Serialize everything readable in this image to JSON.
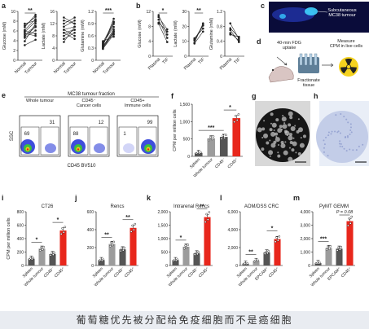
{
  "caption": "葡萄糖优先被分配给免疫细胞而不是癌细胞",
  "colors": {
    "red": "#e8271c",
    "dark": "#555555",
    "grey": "#9c9c9c",
    "flow_blue": "#1d2fd6",
    "ink": "#222222"
  },
  "panel_letters": {
    "a": "a",
    "b": "b",
    "c": "c",
    "d": "d",
    "e": "e",
    "f": "f",
    "g": "g",
    "h": "h",
    "i": "i",
    "j": "j",
    "k": "k",
    "l": "l",
    "m": "m"
  },
  "panel_a": {
    "xticks": [
      "Normal",
      "Tumour"
    ],
    "plots": [
      {
        "ylabel": "Glucose (mM)",
        "yticks": [
          "0",
          "2",
          "4",
          "6",
          "8",
          "10"
        ],
        "ylim": [
          0,
          10
        ],
        "sig": "**",
        "pairs": [
          [
            6.2,
            8.4
          ],
          [
            5.8,
            7.9
          ],
          [
            7.1,
            8.9
          ],
          [
            4.9,
            6.8
          ],
          [
            5.5,
            5.0
          ],
          [
            3.9,
            7.5
          ],
          [
            6.8,
            9.3
          ],
          [
            4.6,
            6.1
          ],
          [
            7.5,
            8.1
          ],
          [
            5.2,
            7.0
          ],
          [
            3.1,
            4.2
          ],
          [
            6.0,
            5.4
          ]
        ]
      },
      {
        "ylabel": "Lactate (mM)",
        "yticks": [
          "0",
          "4",
          "8",
          "12",
          "16"
        ],
        "ylim": [
          0,
          16
        ],
        "sig": "",
        "pairs": [
          [
            9,
            10
          ],
          [
            12,
            14
          ],
          [
            7,
            9
          ],
          [
            10,
            8
          ],
          [
            13,
            12
          ],
          [
            6,
            11
          ],
          [
            8,
            10
          ],
          [
            11,
            13
          ],
          [
            9,
            7
          ],
          [
            14,
            12
          ],
          [
            10,
            11
          ]
        ]
      },
      {
        "ylabel": "Glutamine (mM)",
        "yticks": [
          "0",
          "0.3",
          "0.6",
          "0.9",
          "1.2"
        ],
        "ylim": [
          0,
          1.2
        ],
        "sig": "***",
        "pairs": [
          [
            0.31,
            0.72
          ],
          [
            0.38,
            0.95
          ],
          [
            0.29,
            0.63
          ],
          [
            0.42,
            0.82
          ],
          [
            0.35,
            1.02
          ],
          [
            0.47,
            0.58
          ],
          [
            0.33,
            0.76
          ],
          [
            0.4,
            0.89
          ],
          [
            0.28,
            0.7
          ],
          [
            0.36,
            0.66
          ],
          [
            0.44,
            0.93
          ]
        ]
      }
    ]
  },
  "panel_b": {
    "xticks": [
      "Plasma",
      "TIF"
    ],
    "plots": [
      {
        "ylabel": "Glucose (mM)",
        "yticks": [
          "0",
          "4",
          "8",
          "12"
        ],
        "ylim": [
          0,
          12
        ],
        "sig": "*",
        "pairs": [
          [
            10.5,
            7.2
          ],
          [
            11.0,
            5.8
          ],
          [
            9.8,
            4.9
          ],
          [
            9.0,
            6.6
          ],
          [
            8.7,
            3.8
          ]
        ]
      },
      {
        "ylabel": "Lactate (mM)",
        "yticks": [
          "0",
          "10",
          "20",
          "30"
        ],
        "ylim": [
          0,
          30
        ],
        "sig": "**",
        "pairs": [
          [
            10.5,
            20.5
          ],
          [
            9.0,
            22.0
          ],
          [
            12.0,
            18.5
          ],
          [
            8.5,
            16.5
          ],
          [
            11.0,
            21.0
          ]
        ]
      },
      {
        "ylabel": "Glutamine (mM)",
        "yticks": [
          "0",
          "0.4",
          "0.8",
          "1.2"
        ],
        "ylim": [
          0,
          1.2
        ],
        "sig": "",
        "pairs": [
          [
            0.75,
            0.5
          ],
          [
            0.62,
            0.42
          ],
          [
            0.88,
            0.46
          ],
          [
            0.58,
            0.52
          ],
          [
            0.7,
            0.38
          ]
        ]
      }
    ]
  },
  "panel_c": {
    "label": "Subcutaneous\nMC38 tumour"
  },
  "panel_d": {
    "step1": "40-min FDG\nuptake",
    "step2": "Fractionate\ntissue",
    "step3": "Measure\nCPM in live cells"
  },
  "panel_e": {
    "title": "MC38 tumour fraction",
    "headers": [
      "Whole tumour",
      "CD45⁻\nCancer cells",
      "CD45+\nImmune cells"
    ],
    "gate_values": [
      [
        "69",
        "31"
      ],
      [
        "88",
        "12"
      ],
      [
        "1",
        "99"
      ]
    ],
    "ylabel": "SSC",
    "xlabel": "CD45 BV510"
  },
  "panel_f": {
    "ylabel": "CPM per million cells",
    "chart_data": {
      "type": "bar",
      "categories": [
        "Spleen",
        "Whole tumour",
        "CD45⁻",
        "CD45⁺"
      ],
      "values": [
        100,
        520,
        560,
        1100
      ],
      "yticks": [
        "0",
        "500",
        "1,000",
        "1,500"
      ],
      "ylim": [
        0,
        1500
      ],
      "sig": [
        [
          "***",
          0,
          2
        ],
        [
          "*",
          2,
          3
        ]
      ]
    }
  },
  "panel_i": {
    "title": "CT26",
    "ylabel": "CPM per million cells",
    "chart_data": {
      "type": "bar",
      "categories": [
        "Spleen",
        "Whole tumour",
        "CD45⁻",
        "CD45⁺"
      ],
      "values": [
        100,
        250,
        170,
        520
      ],
      "yticks": [
        "0",
        "200",
        "400",
        "600",
        "800"
      ],
      "ylim": [
        0,
        800
      ],
      "sig": [
        [
          "*",
          0,
          1
        ],
        [
          "*",
          2,
          3
        ]
      ]
    }
  },
  "panel_j": {
    "title": "Rencs",
    "chart_data": {
      "type": "bar",
      "categories": [
        "Spleen",
        "Whole tumour",
        "CD45⁻",
        "CD45⁺"
      ],
      "values": [
        60,
        240,
        180,
        420
      ],
      "yticks": [
        "0",
        "200",
        "400",
        "600"
      ],
      "ylim": [
        0,
        600
      ],
      "sig": [
        [
          "**",
          0,
          1
        ],
        [
          "**",
          2,
          3
        ]
      ]
    }
  },
  "panel_k": {
    "title": "Intrarenal Rencs",
    "chart_data": {
      "type": "bar",
      "categories": [
        "Spleen",
        "Whole tumour",
        "CD45⁻",
        "CD45⁺"
      ],
      "values": [
        200,
        700,
        450,
        1800
      ],
      "yticks": [
        "0",
        "500",
        "1,000",
        "1,500",
        "2,000"
      ],
      "ylim": [
        0,
        2000
      ],
      "sig": [
        [
          "*",
          0,
          1
        ],
        [
          "**",
          2,
          3
        ]
      ]
    }
  },
  "panel_l": {
    "title": "AOM/DSS CRC",
    "chart_data": {
      "type": "bar",
      "categories": [
        "Spleen",
        "Whole tumour",
        "EPCAM⁺",
        "CD45⁺"
      ],
      "values": [
        200,
        500,
        1450,
        2950
      ],
      "yticks": [
        "0",
        "2,000",
        "4,000",
        "6,000"
      ],
      "ylim": [
        0,
        6000
      ],
      "sig": [
        [
          "**",
          0,
          1
        ],
        [
          "*",
          2,
          3
        ]
      ]
    }
  },
  "panel_m": {
    "title": "PyMT GEMM",
    "chart_data": {
      "type": "bar",
      "categories": [
        "Spleen",
        "Whole tumour",
        "EPCAM⁺",
        "CD45⁺"
      ],
      "values": [
        180,
        1300,
        1250,
        3300
      ],
      "yticks": [
        "0",
        "1,000",
        "2,000",
        "3,000",
        "4,000"
      ],
      "ylim": [
        0,
        4000
      ],
      "sig": [
        [
          "***",
          0,
          1
        ]
      ],
      "pval": "P = 0.08"
    }
  }
}
